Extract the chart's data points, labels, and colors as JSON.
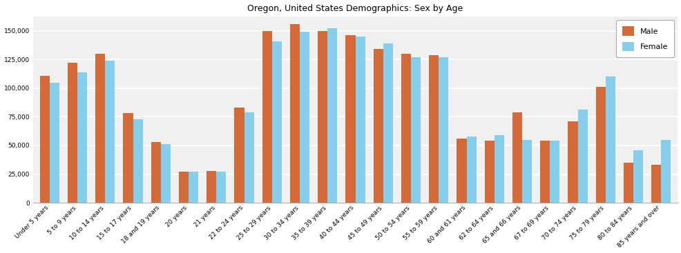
{
  "title": "Oregon, United States Demographics: Sex by Age",
  "categories": [
    "Under 5 years",
    "5 to 9 years",
    "10 to 14 years",
    "15 to 17 years",
    "18 and 19 years",
    "20 years",
    "21 years",
    "22 to 24 years",
    "25 to 29 years",
    "30 to 34 years",
    "35 to 39 years",
    "40 to 44 years",
    "45 to 49 years",
    "50 to 54 years",
    "55 to 59 years",
    "60 and 61 years",
    "62 to 64 years",
    "65 and 66 years",
    "67 to 69 years",
    "70 to 74 years",
    "75 to 79 years",
    "80 to 84 years",
    "85 years and over"
  ],
  "male": [
    111000,
    122000,
    130000,
    78000,
    53000,
    27000,
    28000,
    83000,
    150000,
    156000,
    150000,
    146000,
    134000,
    130000,
    129000,
    56000,
    54000,
    79000,
    54000,
    71000,
    101000,
    35000,
    33000
  ],
  "female": [
    105000,
    114000,
    124000,
    73000,
    51000,
    27000,
    27000,
    79000,
    141000,
    149000,
    152000,
    145000,
    139000,
    127000,
    127000,
    58000,
    59000,
    55000,
    54000,
    81000,
    110000,
    46000,
    55000
  ],
  "male_color": "#d4693a",
  "female_color": "#87ceeb",
  "ylim": [
    0,
    162500
  ],
  "yticks": [
    0,
    25000,
    50000,
    75000,
    100000,
    125000,
    150000
  ],
  "background_color": "#f0f0f0",
  "legend_labels": [
    "Male",
    "Female"
  ],
  "title_fontsize": 9,
  "tick_fontsize": 6.5,
  "bar_width": 0.35,
  "figsize": [
    9.87,
    3.67
  ],
  "dpi": 100
}
